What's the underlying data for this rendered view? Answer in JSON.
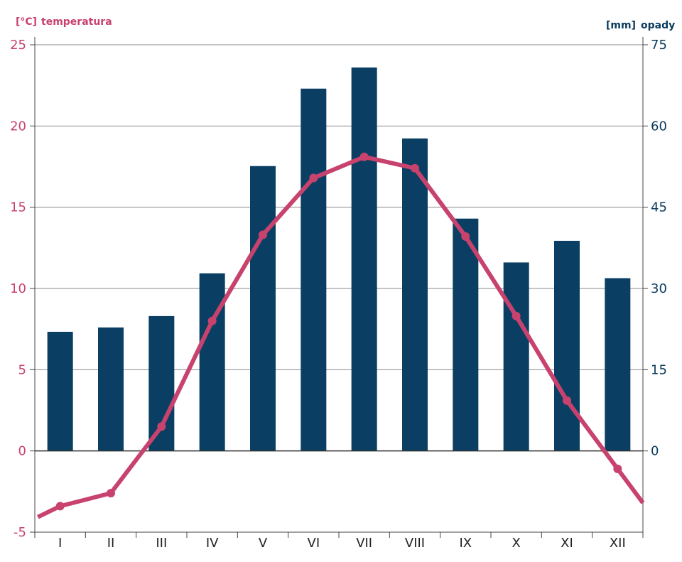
{
  "chart_data": {
    "type": "bar+line",
    "categories": [
      "I",
      "II",
      "III",
      "IV",
      "V",
      "VI",
      "VII",
      "VIII",
      "IX",
      "X",
      "XI",
      "XII"
    ],
    "series": [
      {
        "name": "opady",
        "unit": "[mm]",
        "type": "bar",
        "axis": "right",
        "values": [
          22,
          22.8,
          24.9,
          32.8,
          52.6,
          66.9,
          70.8,
          57.7,
          42.9,
          34.8,
          38.8,
          31.9
        ]
      },
      {
        "name": "temperatura",
        "unit": "[°C]",
        "type": "line",
        "axis": "left",
        "values": [
          -3.4,
          -2.6,
          1.5,
          8.0,
          13.3,
          16.8,
          18.1,
          17.4,
          13.2,
          8.3,
          3.1,
          -1.1
        ]
      }
    ],
    "y_left": {
      "label": "temperatura",
      "unit": "[°C]",
      "ylim": [
        -5,
        25
      ],
      "ticks": [
        25,
        20,
        15,
        10,
        5,
        0,
        -5
      ]
    },
    "y_right": {
      "label": "opady",
      "unit": "[mm]",
      "ylim": [
        -15,
        75
      ],
      "ticks": [
        75,
        60,
        45,
        30,
        15,
        0
      ]
    },
    "grid": true,
    "colors": {
      "bars": "#0a3f63",
      "line": "#c8426e",
      "grid": "#8a8a8a",
      "axis": "#444444",
      "right_text": "#0a3a5c"
    }
  }
}
